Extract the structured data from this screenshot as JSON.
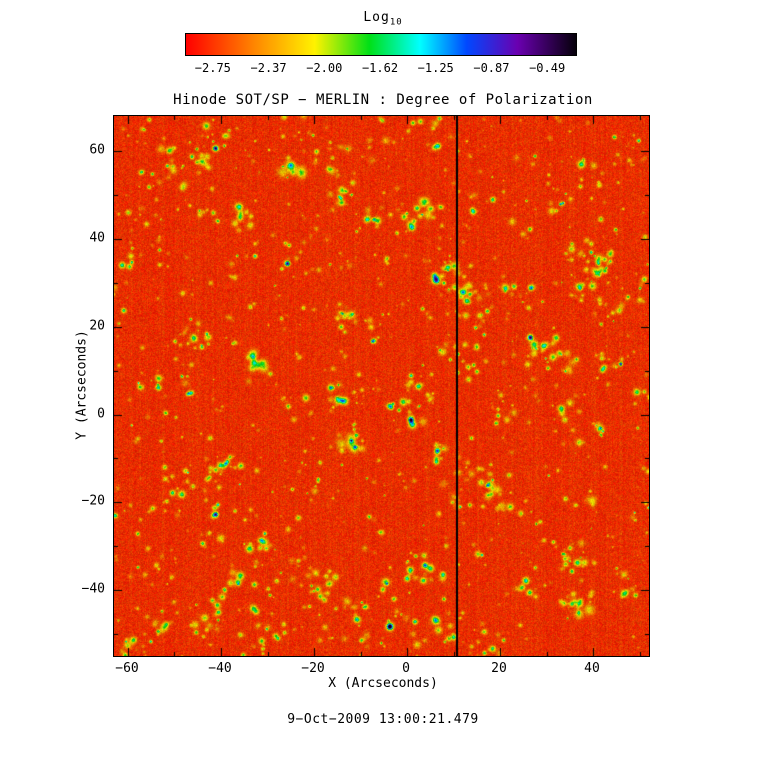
{
  "colorbar": {
    "title_main": "Log",
    "title_sub": "10"
  },
  "chart_data": {
    "type": "heatmap",
    "title": "Hinode SOT/SP − MERLIN : Degree of Polarization",
    "xlabel": "X (Arcseconds)",
    "ylabel": "Y (Arcseconds)",
    "timestamp": "9−Oct−2009 13:00:21.479",
    "value_label": "Log10 degree of polarization",
    "x_range": [
      -63,
      52
    ],
    "y_range": [
      -55,
      68
    ],
    "x_ticks": [
      -60,
      -40,
      -20,
      0,
      20,
      40
    ],
    "y_ticks": [
      -40,
      -20,
      0,
      20,
      40,
      60
    ],
    "minor_tick_step": 10,
    "value_range": [
      -2.94,
      -0.3
    ],
    "colorbar_ticks": [
      -2.75,
      -2.37,
      -2.0,
      -1.62,
      -1.25,
      -0.87,
      -0.49
    ],
    "colormap_stops": [
      [
        0,
        "#ff0000"
      ],
      [
        0.2,
        "#ff9800"
      ],
      [
        0.33,
        "#fff200"
      ],
      [
        0.47,
        "#00e017"
      ],
      [
        0.6,
        "#00ffff"
      ],
      [
        0.72,
        "#0048ff"
      ],
      [
        0.85,
        "#6a00b0"
      ],
      [
        1,
        "#05000a"
      ]
    ],
    "background_level": -2.8,
    "data_gap_x": 10.5,
    "features": [
      {
        "x": -33,
        "y": 12,
        "value": -1.5
      },
      {
        "x": -36,
        "y": 45,
        "value": -1.6
      },
      {
        "x": 5,
        "y": 47,
        "value": -1.75
      },
      {
        "x": 37,
        "y": -43,
        "value": -1.7
      },
      {
        "x": -12,
        "y": -6,
        "value": -1.85
      },
      {
        "x": -25,
        "y": 57,
        "value": -1.8
      }
    ],
    "noise_seed": 1337,
    "blob_count": 700,
    "cluster_count": 130,
    "description": "Quiet-Sun polarization map: red background near log10 p = -2.8 with scattered yellow/green network patches and cyan cores; vertical black data-gap line near x = +10 arcsec."
  }
}
